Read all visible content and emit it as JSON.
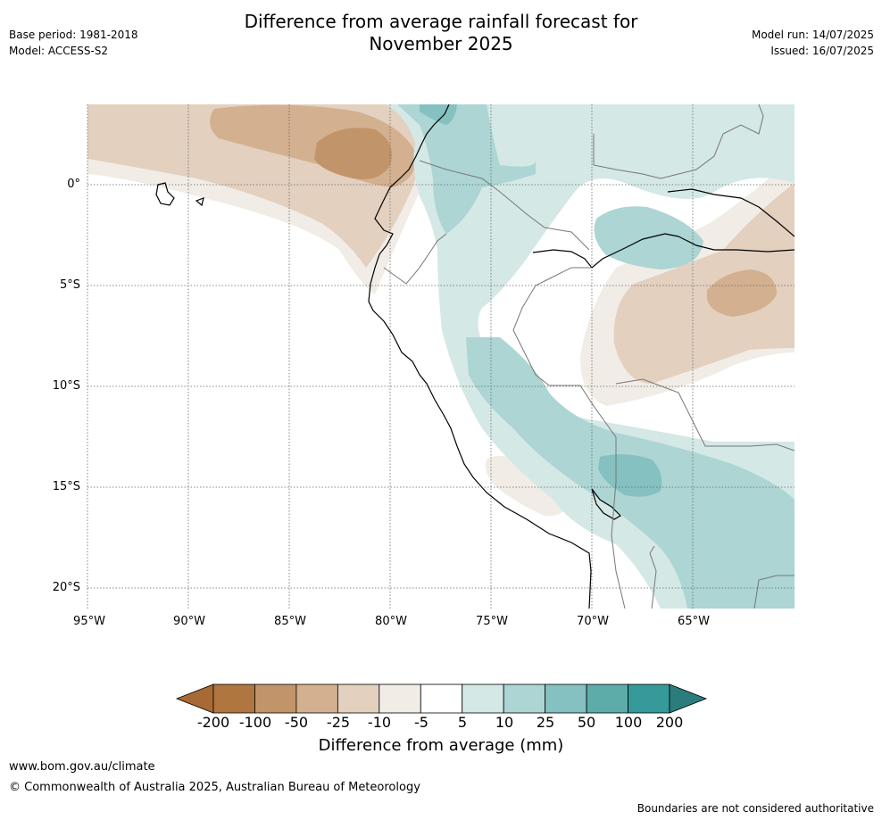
{
  "header": {
    "title_line1": "Difference from average rainfall forecast for",
    "title_line2": "November 2025",
    "base_period": "Base period: 1981-2018",
    "model": "Model: ACCESS-S2",
    "model_run": "Model run: 14/07/2025",
    "issued": "Issued: 16/07/2025"
  },
  "map": {
    "lat_labels": [
      "0°",
      "5°S",
      "10°S",
      "15°S",
      "20°S"
    ],
    "lon_labels": [
      "95°W",
      "90°W",
      "85°W",
      "80°W",
      "75°W",
      "70°W",
      "65°W"
    ],
    "region": "Western South America"
  },
  "legend": {
    "title": "Difference from average (mm)",
    "ticks": [
      "-200",
      "-100",
      "-50",
      "-25",
      "-10",
      "-5",
      "5",
      "10",
      "25",
      "50",
      "100",
      "200"
    ],
    "colors": [
      "#a86a35",
      "#b07640",
      "#c29469",
      "#d3b08f",
      "#e3d0bf",
      "#f1ece6",
      "#ffffff",
      "#d4e8e6",
      "#acd5d4",
      "#84c1c0",
      "#5dacaa",
      "#36999a",
      "#2b7c7c"
    ]
  },
  "footer": {
    "url": "www.bom.gov.au/climate",
    "copyright": "© Commonwealth of Australia 2025, Australian Bureau of Meteorology",
    "disclaimer": "Boundaries are not considered authoritative"
  }
}
